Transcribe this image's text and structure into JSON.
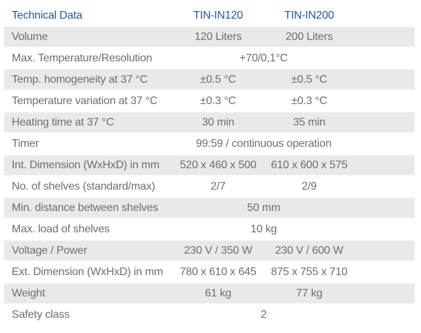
{
  "colors": {
    "header_text": "#2855a0",
    "body_text": "#6e6e70",
    "row_shading": "#e9e9e9",
    "background": "#ffffff"
  },
  "table": {
    "header": {
      "label": "Technical Data",
      "col1": "TIN-IN120",
      "col2": "TIN-IN200"
    },
    "rows": [
      {
        "label": "Volume",
        "span": false,
        "shaded": true,
        "values": [
          "120 Liters",
          "200 Liters"
        ]
      },
      {
        "label": "Max. Temperature/Resolution",
        "span": true,
        "shaded": false,
        "values": [
          "+70/0,1°C"
        ]
      },
      {
        "label": "Temp. homogeneity at 37 °C",
        "span": false,
        "shaded": true,
        "values": [
          "±0.5 °C",
          "±0.5 °C"
        ]
      },
      {
        "label": "Temperature variation at 37 °C",
        "span": false,
        "shaded": false,
        "values": [
          "±0.3 °C",
          "±0.3 °C"
        ]
      },
      {
        "label": "Heating time at 37 °C",
        "span": false,
        "shaded": true,
        "values": [
          "30 min",
          "35 min"
        ]
      },
      {
        "label": "Timer",
        "span": true,
        "shaded": false,
        "values": [
          "99:59 / continuous operation"
        ]
      },
      {
        "label": "Int. Dimension (WxHxD) in mm",
        "span": false,
        "shaded": true,
        "values": [
          "520 x 460 x 500",
          "610 x 600 x 575"
        ]
      },
      {
        "label": "No. of shelves (standard/max)",
        "span": false,
        "shaded": false,
        "values": [
          "2/7",
          "2/9"
        ]
      },
      {
        "label": "Min. distance between shelves",
        "span": true,
        "shaded": true,
        "values": [
          "50 mm"
        ]
      },
      {
        "label": "Max. load of shelves",
        "span": true,
        "shaded": false,
        "values": [
          "10 kg"
        ]
      },
      {
        "label": "Voltage / Power",
        "span": false,
        "shaded": true,
        "values": [
          "230 V / 350 W",
          "230 V / 600 W"
        ]
      },
      {
        "label": "Ext. Dimension (WxHxD) in mm",
        "span": false,
        "shaded": false,
        "values": [
          "780 x 610 x 645",
          "875 x 755 x 710"
        ]
      },
      {
        "label": "Weight",
        "span": false,
        "shaded": true,
        "values": [
          "61 kg",
          "77 kg"
        ]
      },
      {
        "label": "Safety class",
        "span": true,
        "shaded": false,
        "values": [
          "2"
        ]
      }
    ]
  }
}
